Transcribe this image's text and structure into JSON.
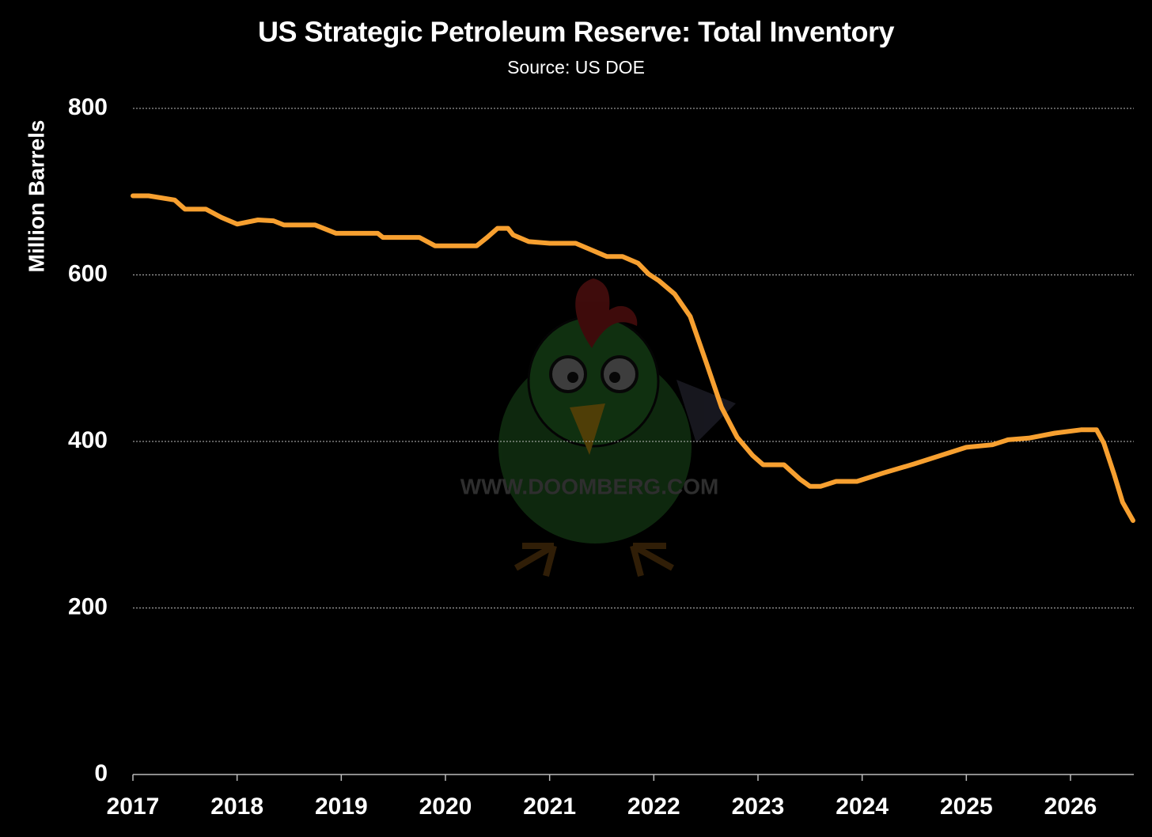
{
  "chart_data": {
    "type": "line",
    "title": "US Strategic Petroleum Reserve: Total Inventory",
    "subtitle": "Source: US DOE",
    "y_label": "Million Barrels",
    "watermark": "WWW.DOOMBERG.COM",
    "xlim": [
      2017,
      2026.6
    ],
    "xticks": [
      2017,
      2018,
      2019,
      2020,
      2021,
      2022,
      2023,
      2024,
      2025,
      2026
    ],
    "ylim": [
      0,
      800
    ],
    "yticks": [
      0,
      200,
      400,
      600,
      800
    ],
    "grid": true,
    "series": [
      {
        "name": "Total Inventory",
        "color": "#f7a030",
        "x": [
          2017.0,
          2017.15,
          2017.4,
          2017.5,
          2017.7,
          2017.85,
          2018.0,
          2018.2,
          2018.35,
          2018.45,
          2018.75,
          2018.95,
          2019.0,
          2019.35,
          2019.4,
          2019.75,
          2019.9,
          2020.0,
          2020.3,
          2020.4,
          2020.5,
          2020.6,
          2020.65,
          2020.8,
          2021.0,
          2021.25,
          2021.4,
          2021.55,
          2021.7,
          2021.85,
          2021.95,
          2022.05,
          2022.2,
          2022.35,
          2022.5,
          2022.65,
          2022.8,
          2022.95,
          2023.05,
          2023.25,
          2023.4,
          2023.5,
          2023.6,
          2023.75,
          2023.95,
          2024.2,
          2024.5,
          2024.75,
          2025.0,
          2025.25,
          2025.4,
          2025.6,
          2025.85,
          2026.1,
          2026.25,
          2026.32,
          2026.42,
          2026.5,
          2026.6
        ],
        "values": [
          695,
          695,
          690,
          679,
          679,
          669,
          661,
          666,
          665,
          660,
          660,
          650,
          650,
          650,
          645,
          645,
          635,
          635,
          635,
          645,
          656,
          656,
          648,
          640,
          638,
          638,
          630,
          622,
          622,
          614,
          601,
          593,
          577,
          550,
          496,
          441,
          405,
          383,
          372,
          372,
          355,
          346,
          346,
          352,
          352,
          362,
          373,
          383,
          393,
          396,
          402,
          404,
          410,
          414,
          414,
          398,
          360,
          327,
          305
        ]
      }
    ]
  }
}
